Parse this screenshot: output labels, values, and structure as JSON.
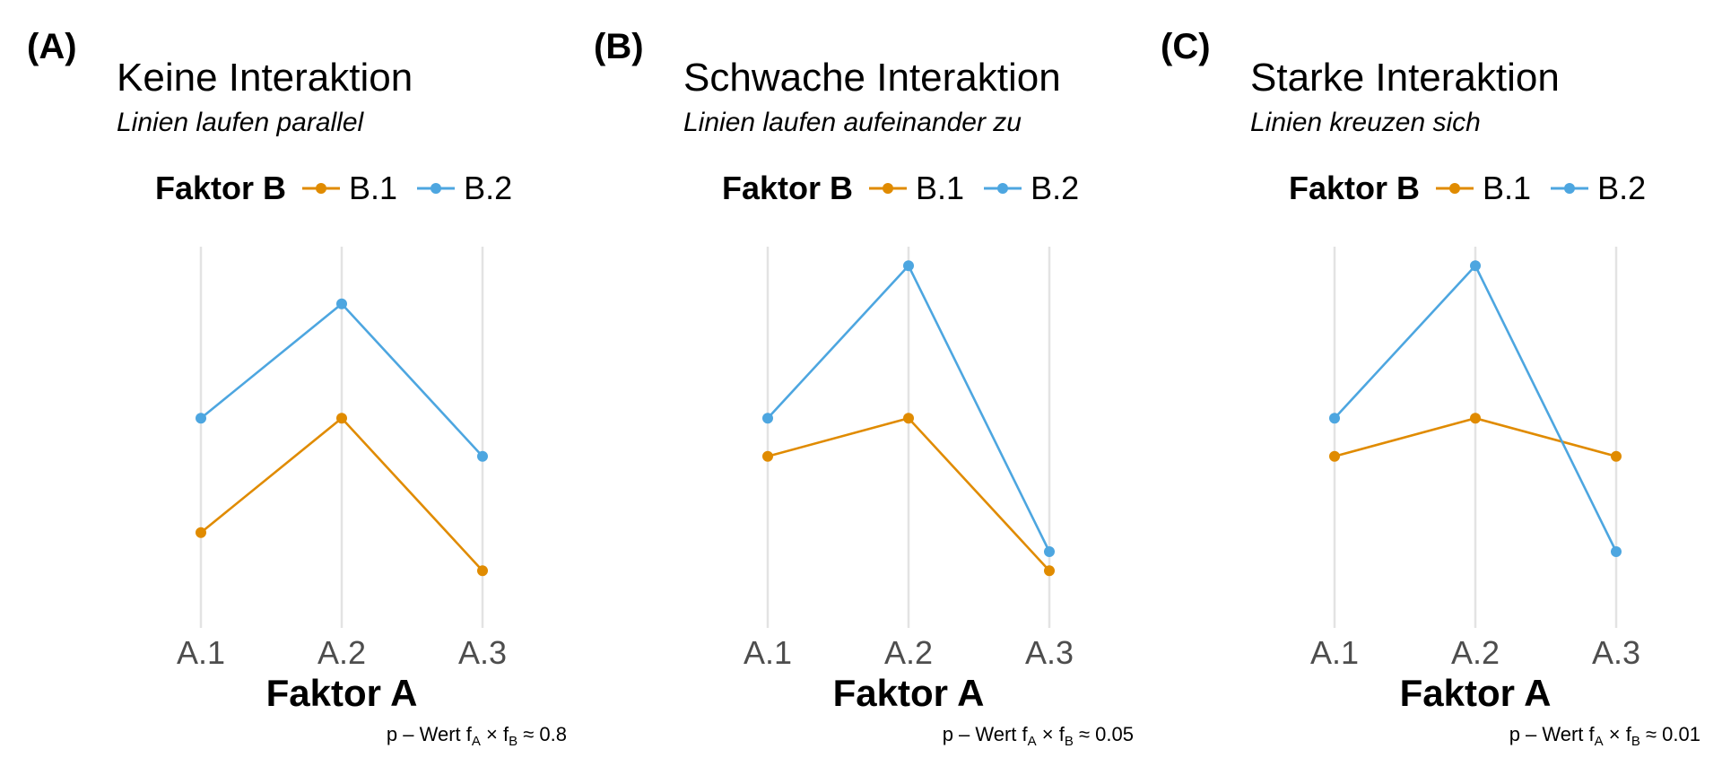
{
  "colors": {
    "B.1": "#E08B00",
    "B.2": "#4DA6E0",
    "grid": "#e3e3e3"
  },
  "chart_data": [
    {
      "type": "line",
      "panel": "(A)",
      "title": "Keine Interaktion",
      "subtitle": "Linien laufen parallel",
      "legend_title": "Faktor B",
      "legend_position": "top",
      "xlabel": "Faktor A",
      "ylabel": "",
      "grid": "vertical-major-only",
      "categories": [
        "A.1",
        "A.2",
        "A.3"
      ],
      "ylim": [
        0,
        1
      ],
      "series": [
        {
          "name": "B.1",
          "values": [
            0.25,
            0.55,
            0.15
          ]
        },
        {
          "name": "B.2",
          "values": [
            0.55,
            0.85,
            0.45
          ]
        }
      ],
      "caption": {
        "prefix": "p – Wert f",
        "sub1": "A",
        "mid": " × f",
        "sub2": "B",
        "suffix": " ≈ 0.8"
      }
    },
    {
      "type": "line",
      "panel": "(B)",
      "title": "Schwache Interaktion",
      "subtitle": "Linien laufen aufeinander zu",
      "legend_title": "Faktor B",
      "legend_position": "top",
      "xlabel": "Faktor A",
      "ylabel": "",
      "grid": "vertical-major-only",
      "categories": [
        "A.1",
        "A.2",
        "A.3"
      ],
      "ylim": [
        0,
        1
      ],
      "series": [
        {
          "name": "B.1",
          "values": [
            0.45,
            0.55,
            0.15
          ]
        },
        {
          "name": "B.2",
          "values": [
            0.55,
            0.95,
            0.2
          ]
        }
      ],
      "caption": {
        "prefix": "p – Wert f",
        "sub1": "A",
        "mid": " × f",
        "sub2": "B",
        "suffix": " ≈ 0.05"
      }
    },
    {
      "type": "line",
      "panel": "(C)",
      "title": "Starke Interaktion",
      "subtitle": "Linien kreuzen sich",
      "legend_title": "Faktor B",
      "legend_position": "top",
      "xlabel": "Faktor A",
      "ylabel": "",
      "grid": "vertical-major-only",
      "categories": [
        "A.1",
        "A.2",
        "A.3"
      ],
      "ylim": [
        0,
        1
      ],
      "series": [
        {
          "name": "B.1",
          "values": [
            0.45,
            0.55,
            0.45
          ]
        },
        {
          "name": "B.2",
          "values": [
            0.55,
            0.95,
            0.2
          ]
        }
      ],
      "caption": {
        "prefix": "p – Wert f",
        "sub1": "A",
        "mid": " × f",
        "sub2": "B",
        "suffix": " ≈ 0.01"
      }
    }
  ]
}
